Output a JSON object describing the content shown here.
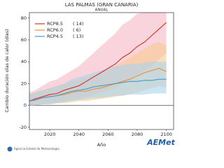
{
  "chart_data": {
    "type": "line",
    "title": "LAS PALMAS (GRAN CANARIA)",
    "subtitle": "ANUAL",
    "y_label": "Cambio duración olas de calor (días)",
    "x_label": "Año",
    "x": [
      2006,
      2010,
      2015,
      2020,
      2025,
      2030,
      2035,
      2040,
      2045,
      2050,
      2055,
      2060,
      2065,
      2070,
      2075,
      2080,
      2085,
      2090,
      2095,
      2100
    ],
    "series": [
      {
        "name": "RCP8.5",
        "count_label": "( 14)",
        "color": "#d7301f",
        "band_color": "#f7b8c4",
        "values": [
          4,
          6,
          8,
          10,
          11,
          14,
          16,
          18,
          22,
          26,
          30,
          34,
          38,
          44,
          48,
          54,
          58,
          64,
          70,
          76
        ],
        "upper": [
          12,
          14,
          18,
          22,
          24,
          28,
          32,
          36,
          42,
          48,
          54,
          60,
          66,
          74,
          78,
          84,
          85,
          85,
          85,
          85
        ],
        "lower": [
          0,
          0,
          1,
          2,
          3,
          4,
          5,
          6,
          8,
          10,
          12,
          14,
          16,
          20,
          24,
          28,
          32,
          36,
          42,
          48
        ]
      },
      {
        "name": "RCP6.0",
        "count_label": "(  6)",
        "color": "#f28c28",
        "band_color": "#f9c98f",
        "values": [
          4,
          5,
          7,
          8,
          9,
          10,
          12,
          13,
          13,
          15,
          16,
          18,
          20,
          22,
          24,
          27,
          30,
          32,
          34,
          31
        ],
        "upper": [
          10,
          12,
          14,
          16,
          18,
          20,
          22,
          24,
          26,
          28,
          30,
          32,
          36,
          40,
          44,
          48,
          52,
          56,
          58,
          55
        ],
        "lower": [
          0,
          0,
          1,
          1,
          2,
          2,
          3,
          4,
          4,
          5,
          6,
          7,
          8,
          9,
          10,
          12,
          14,
          16,
          18,
          16
        ]
      },
      {
        "name": "RCP4.5",
        "count_label": "( 13)",
        "color": "#3f9bd4",
        "band_color": "#a9d3ef",
        "values": [
          4,
          5,
          7,
          8,
          9,
          11,
          13,
          14,
          15,
          17,
          18,
          19,
          20,
          21,
          22,
          22,
          23,
          23,
          24,
          24
        ],
        "upper": [
          10,
          12,
          14,
          16,
          18,
          20,
          24,
          26,
          28,
          30,
          32,
          34,
          36,
          37,
          38,
          38,
          39,
          40,
          40,
          40
        ],
        "lower": [
          0,
          0,
          1,
          1,
          2,
          3,
          4,
          5,
          6,
          7,
          7,
          8,
          9,
          9,
          10,
          10,
          10,
          11,
          11,
          11
        ]
      }
    ],
    "xlim": [
      2006,
      2105
    ],
    "xticks": [
      2020,
      2040,
      2060,
      2080,
      2100
    ],
    "ylim": [
      -22,
      85
    ],
    "yticks": [
      -20,
      0,
      20,
      40,
      60,
      80
    ],
    "legend": "upper-left"
  },
  "footer": {
    "agency": "Agencia Estatal de Meteorología",
    "logo": "AEMet"
  }
}
